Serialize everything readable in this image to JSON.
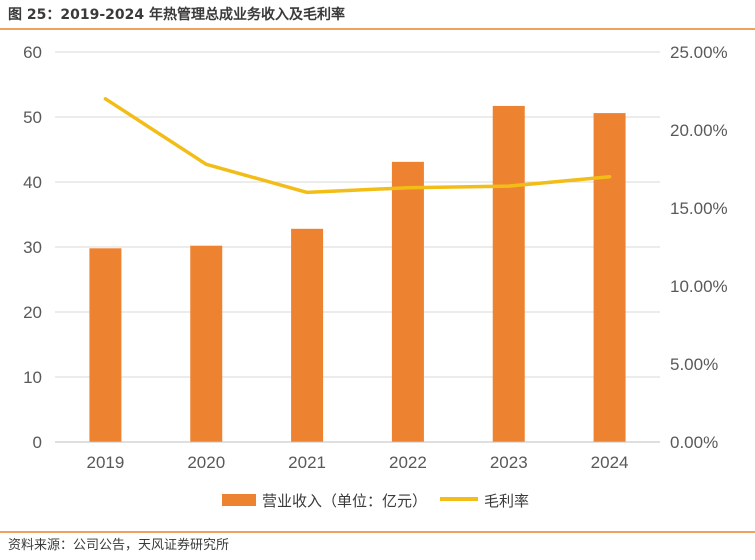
{
  "figure": {
    "title": "图 25：2019-2024 年热管理总成业务收入及毛利率",
    "source": "资料来源：公司公告，天风证券研究所"
  },
  "chart_data": {
    "type": "bar+line",
    "categories": [
      "2019",
      "2020",
      "2021",
      "2022",
      "2023",
      "2024"
    ],
    "series": [
      {
        "name": "营业收入（单位：亿元）",
        "type": "bar",
        "axis": "left",
        "color": "#ed8330",
        "values": [
          29.8,
          30.2,
          32.8,
          43.1,
          51.7,
          50.6
        ]
      },
      {
        "name": "毛利率",
        "type": "line",
        "axis": "right",
        "color": "#f2bd16",
        "values": [
          0.22,
          0.178,
          0.16,
          0.163,
          0.164,
          0.17
        ]
      }
    ],
    "y_left": {
      "range": [
        0,
        60
      ],
      "ticks": [
        "0",
        "10",
        "20",
        "30",
        "40",
        "50",
        "60"
      ]
    },
    "y_right": {
      "range": [
        0,
        0.25
      ],
      "ticks": [
        "0.00%",
        "5.00%",
        "10.00%",
        "15.00%",
        "20.00%",
        "25.00%"
      ]
    },
    "grid": true,
    "legend": "bottom"
  }
}
